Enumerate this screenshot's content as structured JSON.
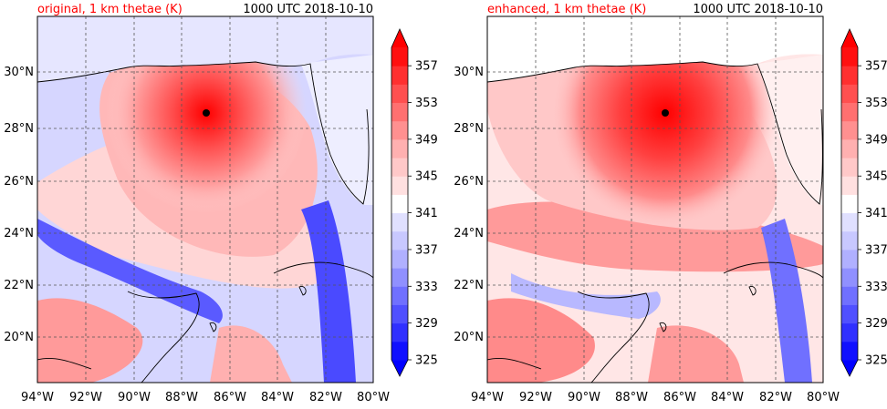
{
  "panels": [
    {
      "title_left": "original, 1 km thetae (K)",
      "title_right": "1000 UTC 2018-10-10",
      "variant": "original"
    },
    {
      "title_left": "enhanced, 1 km thetae (K)",
      "title_right": "1000 UTC 2018-10-10",
      "variant": "enhanced"
    }
  ],
  "map": {
    "lon_range": [
      -94,
      -80
    ],
    "lat_range": [
      18.2,
      32
    ],
    "lon_ticks": [
      "94°W",
      "92°W",
      "90°W",
      "88°W",
      "86°W",
      "84°W",
      "82°W",
      "80°W"
    ],
    "lat_ticks": [
      "20°N",
      "22°N",
      "24°N",
      "26°N",
      "28°N",
      "30°N"
    ],
    "storm_center": {
      "lon": -87.0,
      "lat": 28.5
    }
  },
  "colorbar": {
    "levels": [
      325,
      327,
      329,
      331,
      333,
      335,
      337,
      339,
      341,
      343,
      345,
      347,
      349,
      351,
      353,
      355,
      357,
      359
    ],
    "tick_labels": [
      "325",
      "329",
      "333",
      "337",
      "341",
      "345",
      "349",
      "353",
      "357"
    ],
    "colors": [
      "#1010ff",
      "#3030ff",
      "#5050ff",
      "#7070ff",
      "#9090ff",
      "#b0b0ff",
      "#c8c8ff",
      "#e0e0ff",
      "#ffffff",
      "#ffe0e0",
      "#ffc8c8",
      "#ffb0b0",
      "#ff9090",
      "#ff7070",
      "#ff5050",
      "#ff3030",
      "#ff1010"
    ],
    "over_color": "#ff0000",
    "under_color": "#0000ff"
  }
}
